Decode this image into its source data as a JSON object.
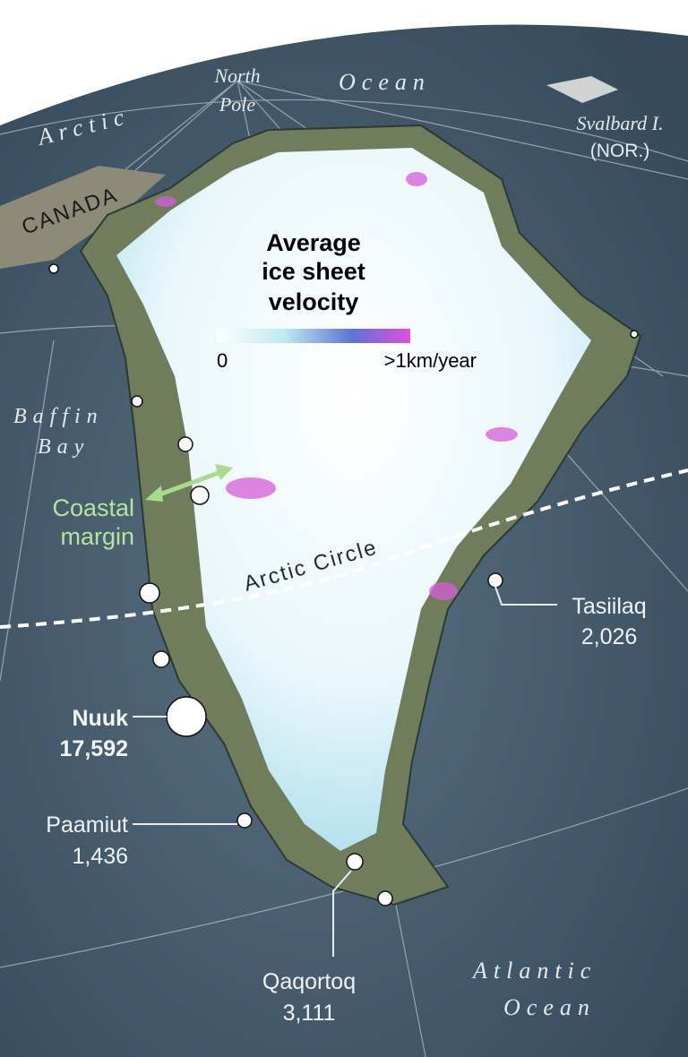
{
  "legend": {
    "title": [
      "Average",
      "ice sheet",
      "velocity"
    ],
    "min_label": "0",
    "max_label": ">1km/year"
  },
  "places": {
    "north_pole": [
      "North",
      "Pole"
    ],
    "arctic_ocean": [
      "Arctic",
      "Ocean"
    ],
    "svalbard": [
      "Svalbard I.",
      "(NOR.)"
    ],
    "canada": "CANADA",
    "baffin_bay": [
      "Baffin",
      "Bay"
    ],
    "coastal_margin": [
      "Coastal",
      "margin"
    ],
    "arctic_circle": "Arctic Circle",
    "atlantic_ocean": [
      "Atlantic",
      "Ocean"
    ]
  },
  "towns": [
    {
      "name": "Tasiilaq",
      "population": "2,026"
    },
    {
      "name": "Nuuk",
      "population": "17,592"
    },
    {
      "name": "Paamiut",
      "population": "1,436"
    },
    {
      "name": "Qaqortoq",
      "population": "3,111"
    }
  ]
}
